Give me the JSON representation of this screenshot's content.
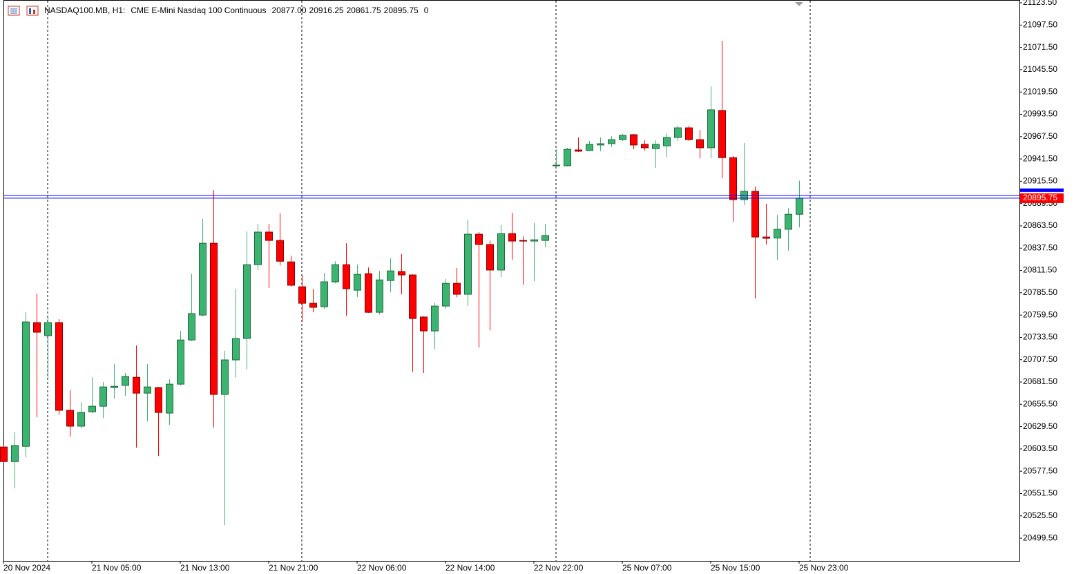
{
  "chart_data": {
    "type": "candlestick",
    "symbol": "NASDAQ100.MB, H1:",
    "description": "CME E-Mini Nasdaq 100 Continuous",
    "header_values": [
      {
        "value": 20877,
        "label": "20877.00"
      },
      {
        "value": 20916.25,
        "label": "20916.25"
      },
      {
        "value": 20861.75,
        "label": "20861.75"
      },
      {
        "value": 20895.75,
        "label": "20895.75"
      }
    ],
    "tick_volume": 0,
    "categories": [
      "20 Nov 2024",
      null,
      null,
      null,
      null,
      null,
      null,
      null,
      "21 Nov 05:00",
      null,
      null,
      null,
      null,
      null,
      null,
      null,
      "21 Nov 13:00",
      null,
      null,
      null,
      null,
      null,
      null,
      null,
      "21 Nov 21:00",
      null,
      null,
      null,
      null,
      null,
      null,
      null,
      "22 Nov 06:00",
      null,
      null,
      null,
      null,
      null,
      null,
      null,
      "22 Nov 14:00",
      null,
      null,
      null,
      null,
      null,
      null,
      null,
      "22 Nov 22:00",
      null,
      null,
      null,
      null,
      null,
      null,
      null,
      "25 Nov 07:00",
      null,
      null,
      null,
      null,
      null,
      null,
      null,
      "25 Nov 15:00",
      null,
      null,
      null,
      null,
      null,
      null,
      null,
      "25 Nov 23:00"
    ],
    "open": [
      20605.75,
      20588.75,
      20606.5,
      20750.75,
      20735.5,
      20750.75,
      20648.5,
      20630,
      20646.75,
      20653.25,
      20675,
      20677.5,
      20687,
      20668.5,
      20675,
      20645.25,
      20679,
      20730.5,
      20759.5,
      20843.25,
      20667,
      20707.25,
      20732.25,
      20818.25,
      20856.25,
      20846.5,
      20821.5,
      20792.5,
      20773.25,
      20769.25,
      20798.25,
      20818.25,
      20788.5,
      20807.75,
      20762.75,
      20799.75,
      20810.25,
      20806.25,
      20757.25,
      20741,
      20770,
      20796.5,
      20783.75,
      20853.75,
      20841.75,
      20812,
      20854.5,
      20846.5,
      20845.75,
      20846.5,
      20933.5,
      20933.5,
      20952,
      20951.25,
      20957.75,
      20959.25,
      20964,
      20969.75,
      20958.5,
      20953.5,
      20956.75,
      20966.5,
      20977.75,
      20964,
      20954.5,
      20998,
      20943,
      20894,
      20903.75,
      20850.5,
      20849.25,
      20859.5,
      20877
    ],
    "high": [
      20607.5,
      20623.5,
      20762.75,
      20784.5,
      20756.25,
      20754.75,
      20671.75,
      20658,
      20687,
      20681.5,
      20702.5,
      20692,
      20724,
      20702.5,
      20675.75,
      20684.75,
      20741,
      20807.75,
      20871.5,
      20905.25,
      20717.75,
      20790.25,
      20857,
      20865.75,
      20865.75,
      20878,
      20828.75,
      20806.25,
      20790.25,
      20808.75,
      20822.25,
      20843.25,
      20818.25,
      20815,
      20811,
      20825.5,
      20830.5,
      20807,
      20758,
      20774,
      20801.5,
      20814.25,
      20870.75,
      20856.25,
      20846.5,
      20864.25,
      20878.75,
      20851.25,
      20866.75,
      20865.75,
      20952.75,
      20954.5,
      20966.5,
      20962.5,
      20966.5,
      20968,
      20970.5,
      20970.5,
      20963.25,
      20963.25,
      20971.25,
      20980.25,
      20980.25,
      20975.25,
      21026,
      21079.25,
      20944.75,
      20960,
      20909.25,
      20889.25,
      20876.25,
      20884.25,
      20916.25
    ],
    "low": [
      20587.25,
      20557.5,
      20593.75,
      20640.5,
      20683.75,
      20643.5,
      20617.75,
      20627.5,
      20645.25,
      20639.5,
      20662,
      20665.25,
      20605,
      20635.5,
      20595.25,
      20631.5,
      20677.5,
      20729,
      20758,
      20628.25,
      20514.75,
      20687,
      20696,
      20812,
      20791,
      20817.5,
      20792.5,
      20751.5,
      20762.75,
      20766.75,
      20796.5,
      20758.75,
      20780.5,
      20762,
      20760.25,
      20786,
      20783.75,
      20693.5,
      20692,
      20720,
      20766.75,
      20780.5,
      20770,
      20721.75,
      20741.75,
      20803.75,
      20824,
      20795,
      20799,
      20838.5,
      20931,
      20932.75,
      20949.5,
      20950.5,
      20950.5,
      20955.25,
      20962.5,
      20952.75,
      20951.25,
      20931,
      20944,
      20962.5,
      20962.5,
      20942.25,
      20942.25,
      20919,
      20868.25,
      20887.5,
      20778.75,
      20841.75,
      20824,
      20834.5,
      20861.75
    ],
    "close": [
      20588.75,
      20607.5,
      20751.5,
      20739.5,
      20750.75,
      20648.5,
      20630,
      20646,
      20653.25,
      20675.75,
      20676.5,
      20688,
      20668.5,
      20675.75,
      20646,
      20679,
      20730.5,
      20761.25,
      20843.25,
      20667,
      20707.25,
      20732.25,
      20818.25,
      20856.25,
      20846.5,
      20822.25,
      20794.25,
      20773.25,
      20768.5,
      20798.25,
      20818.25,
      20790.25,
      20807,
      20762.75,
      20800.5,
      20811,
      20806.25,
      20755.5,
      20741,
      20770,
      20796.5,
      20783.75,
      20853.75,
      20841.75,
      20812,
      20854.5,
      20845.75,
      20845.75,
      20847.25,
      20852.25,
      20934.25,
      20952.75,
      20950.5,
      20958.5,
      20959.25,
      20964,
      20969,
      20957.75,
      20954.5,
      20958.5,
      20966.5,
      20977.75,
      20964,
      20954.5,
      20998.75,
      20943,
      20894,
      20903.75,
      20850.5,
      20849,
      20859.5,
      20877,
      20895.75
    ],
    "up_color": "#3cb371",
    "up_border": "#1e6b3c",
    "down_color": "#ff0000",
    "down_border": "#8b0000",
    "ylim": [
      20473,
      21126.75
    ],
    "yticks": [
      {
        "value": 21123.5,
        "label": "21123.50"
      },
      {
        "value": 21097.5,
        "label": "21097.50"
      },
      {
        "value": 21071.5,
        "label": "21071.50"
      },
      {
        "value": 21045.5,
        "label": "21045.50"
      },
      {
        "value": 21019.5,
        "label": "21019.50"
      },
      {
        "value": 20993.5,
        "label": "20993.50"
      },
      {
        "value": 20967.5,
        "label": "20967.50"
      },
      {
        "value": 20941.5,
        "label": "20941.50"
      },
      {
        "value": 20915.5,
        "label": "20915.50"
      },
      {
        "value": 20889.5,
        "label": "20889.50"
      },
      {
        "value": 20863.5,
        "label": "20863.50"
      },
      {
        "value": 20837.5,
        "label": "20837.50"
      },
      {
        "value": 20811.5,
        "label": "20811.50"
      },
      {
        "value": 20785.5,
        "label": "20785.50"
      },
      {
        "value": 20759.5,
        "label": "20759.50"
      },
      {
        "value": 20733.5,
        "label": "20733.50"
      },
      {
        "value": 20707.5,
        "label": "20707.50"
      },
      {
        "value": 20681.5,
        "label": "20681.50"
      },
      {
        "value": 20655.5,
        "label": "20655.50"
      },
      {
        "value": 20629.5,
        "label": "20629.50"
      },
      {
        "value": 20603.5,
        "label": "20603.50"
      },
      {
        "value": 20577.5,
        "label": "20577.50"
      },
      {
        "value": 20551.5,
        "label": "20551.50"
      },
      {
        "value": 20525.5,
        "label": "20525.50"
      },
      {
        "value": 20499.5,
        "label": "20499.50"
      }
    ],
    "ask_line": 20899,
    "last_price": {
      "value": 20895.75,
      "label": "20895.75"
    },
    "price_line_color": "#0000ff",
    "last_price_color": "#ff0000",
    "grid": false
  }
}
